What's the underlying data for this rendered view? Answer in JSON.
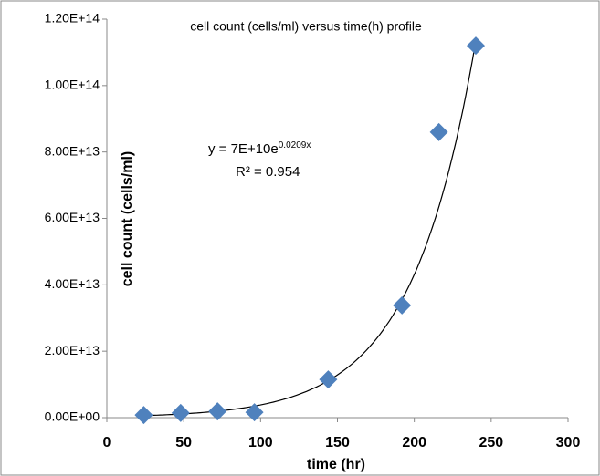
{
  "chart_data": {
    "type": "scatter",
    "title": "cell count (cells/ml) versus time(h) profile",
    "x_label": "time (hr)",
    "y_label": "cell count  (cells/ml)",
    "equation": "y = 7E+10e",
    "equation_exponent": "0.0209x",
    "r_squared": "R² = 0.954",
    "trendline": "exponential",
    "series": [
      {
        "name": "cell count",
        "color": "#4f81bd",
        "x": [
          24,
          48,
          72,
          96,
          144,
          192,
          216,
          240
        ],
        "values": [
          800000000000,
          1400000000000,
          1900000000000,
          1600000000000,
          11500000000000,
          33800000000000,
          86000000000000,
          112000000000000
        ]
      }
    ],
    "xlim": [
      0,
      300
    ],
    "xticks": [
      0,
      50,
      100,
      150,
      200,
      250,
      300
    ],
    "ylim": [
      0,
      120000000000000
    ],
    "yticks": [
      {
        "value": 0,
        "label": "0.00E+00"
      },
      {
        "value": 20000000000000,
        "label": "2.00E+13"
      },
      {
        "value": 40000000000000,
        "label": "4.00E+13"
      },
      {
        "value": 60000000000000,
        "label": "6.00E+13"
      },
      {
        "value": 80000000000000,
        "label": "8.00E+13"
      },
      {
        "value": 100000000000000,
        "label": "1.00E+14"
      },
      {
        "value": 120000000000000,
        "label": "1.20E+14"
      }
    ],
    "grid": false
  }
}
